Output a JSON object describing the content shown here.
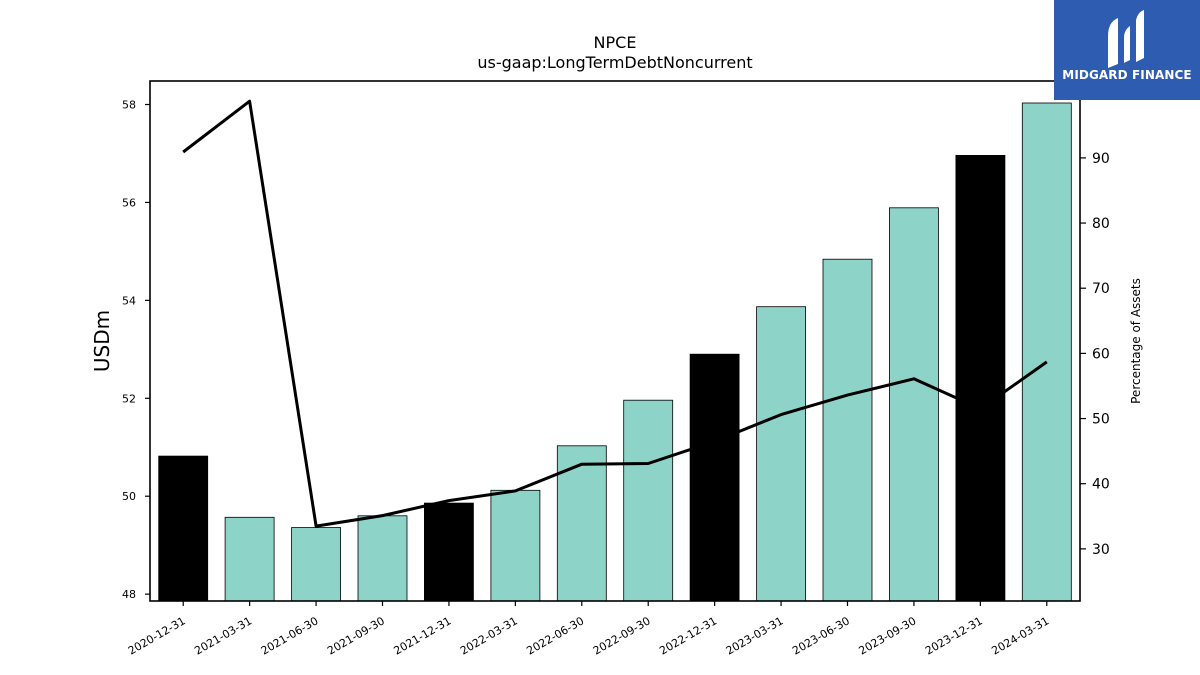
{
  "chart_data": {
    "type": "bar",
    "title": "NPCE",
    "subtitle": "us-gaap:LongTermDebtNoncurrent",
    "ylabel": "USDm",
    "y2label": "Percentage of Assets",
    "categories": [
      "2020-12-31",
      "2021-03-31",
      "2021-06-30",
      "2021-09-30",
      "2021-12-31",
      "2022-03-31",
      "2022-06-30",
      "2022-09-30",
      "2022-12-31",
      "2023-03-31",
      "2023-06-30",
      "2023-09-30",
      "2023-12-31",
      "2024-03-31"
    ],
    "series": [
      {
        "values": [
          50.82,
          49.57,
          49.36,
          49.6,
          49.86,
          50.12,
          51.03,
          51.96,
          52.9,
          53.87,
          54.84,
          55.89,
          56.96,
          58.03
        ],
        "colors": [
          "#000000",
          "#8dd3c7",
          "#8dd3c7",
          "#8dd3c7",
          "#000000",
          "#8dd3c7",
          "#8dd3c7",
          "#8dd3c7",
          "#000000",
          "#8dd3c7",
          "#8dd3c7",
          "#8dd3c7",
          "#000000",
          "#8dd3c7"
        ]
      },
      {
        "type": "line",
        "axis": "right",
        "values": [
          90.9,
          98.7,
          33.5,
          35.1,
          37.4,
          38.9,
          43.0,
          43.1,
          46.5,
          50.6,
          53.6,
          56.1,
          51.5,
          58.7
        ]
      }
    ],
    "ylim": [
      47.86,
      58.48
    ],
    "y2lim": [
      22.0,
      101.8
    ],
    "yticks": [
      "48",
      "50",
      "52",
      "54",
      "56",
      "58"
    ],
    "y2ticks": [
      "30",
      "40",
      "50",
      "60",
      "70",
      "80",
      "90"
    ],
    "grid": false
  },
  "logo": {
    "text": "MIDGARD FINANCE"
  }
}
